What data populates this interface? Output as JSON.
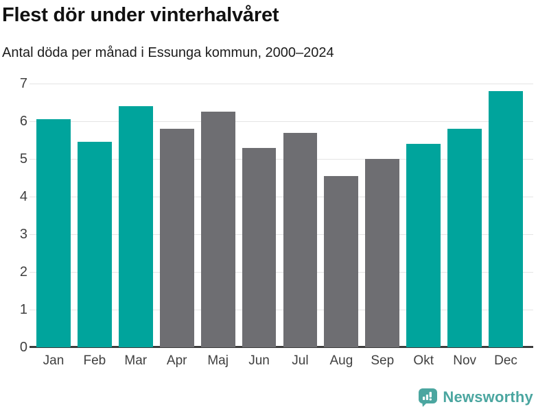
{
  "title": "Flest dör under vinterhalvåret",
  "subtitle": "Antal döda per månad i Essunga kommun, 2000–2024",
  "footer": {
    "brand": "Newsworthy",
    "logo_icon": "bar-chart-speech-bubble-icon"
  },
  "colors": {
    "winter": "#00a49c",
    "summer": "#6e6e72",
    "brand": "#4ba6a0",
    "grid": "#e4e4e4",
    "axis": "#3b3b3b",
    "tick_label": "#3f3f3f"
  },
  "chart_data": {
    "type": "bar",
    "title": "Flest dör under vinterhalvåret",
    "subtitle": "Antal döda per månad i Essunga kommun, 2000–2024",
    "categories": [
      "Jan",
      "Feb",
      "Mar",
      "Apr",
      "Maj",
      "Jun",
      "Jul",
      "Aug",
      "Sep",
      "Okt",
      "Nov",
      "Dec"
    ],
    "values": [
      6.05,
      5.45,
      6.4,
      5.8,
      6.25,
      5.3,
      5.7,
      4.55,
      5.0,
      5.4,
      5.8,
      6.8
    ],
    "bar_colors": [
      "winter",
      "winter",
      "winter",
      "summer",
      "summer",
      "summer",
      "summer",
      "summer",
      "summer",
      "winter",
      "winter",
      "winter"
    ],
    "xlabel": "",
    "ylabel": "",
    "ylim": [
      0,
      7
    ],
    "yticks": [
      0,
      1,
      2,
      3,
      4,
      5,
      6,
      7
    ],
    "grid": true,
    "legend": false
  }
}
